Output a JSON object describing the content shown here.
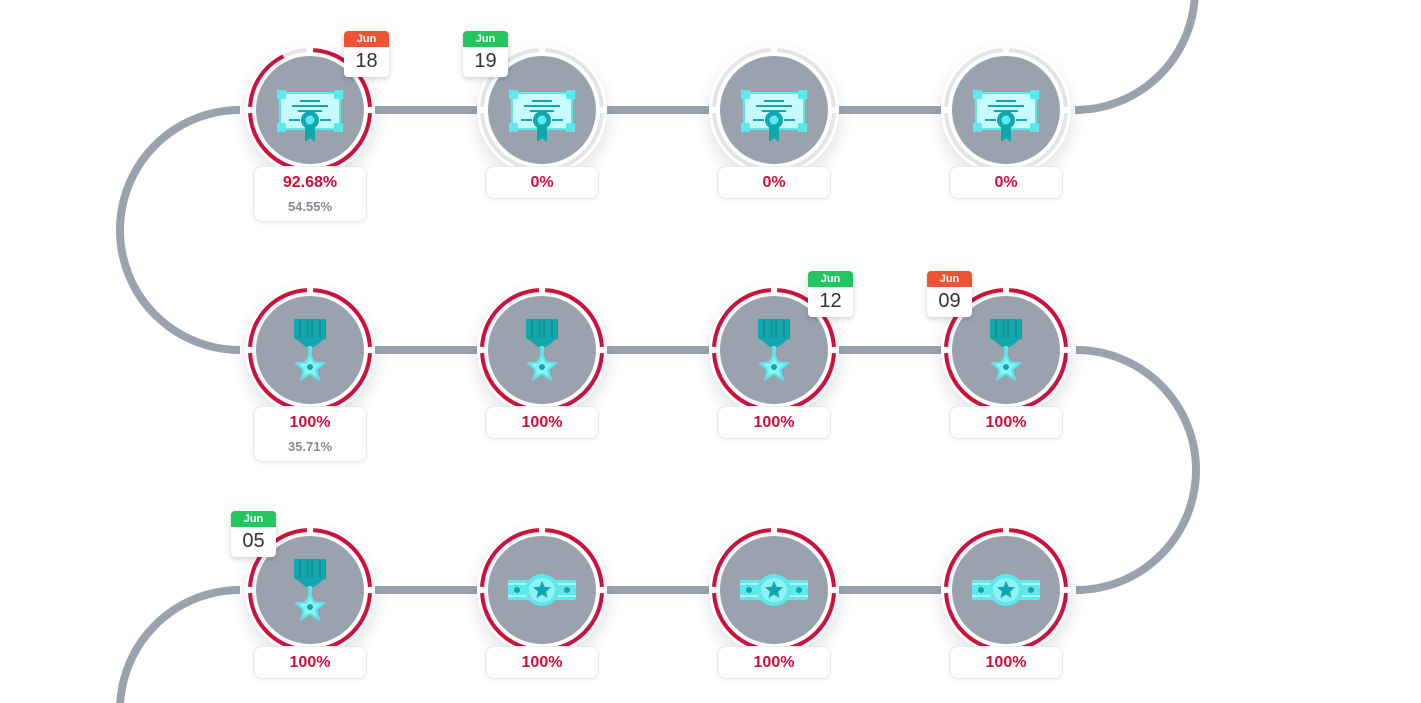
{
  "colors": {
    "track": "#9aa3ad",
    "progress": "#d0103a",
    "ring_bg": "#e3e4e6",
    "cal_red": "#ef5334",
    "cal_green": "#22c55e",
    "icon_dark": "#13a6ad",
    "icon_light": "#5de8ec",
    "icon_pale": "#c7fbfd"
  },
  "nodes": [
    {
      "icon": "certificate-icon",
      "progress": 92.68,
      "label": "92.68%",
      "sub": "54.55%",
      "calendar": {
        "month": "Jun",
        "day": "18",
        "color": "red"
      }
    },
    {
      "icon": "certificate-icon",
      "progress": 0,
      "label": "0%",
      "calendar": {
        "month": "Jun",
        "day": "19",
        "color": "green"
      }
    },
    {
      "icon": "certificate-icon",
      "progress": 0,
      "label": "0%"
    },
    {
      "icon": "certificate-icon",
      "progress": 0,
      "label": "0%"
    },
    {
      "icon": "medal-icon",
      "progress": 100,
      "label": "100%",
      "sub": "35.71%"
    },
    {
      "icon": "medal-icon",
      "progress": 100,
      "label": "100%"
    },
    {
      "icon": "medal-icon",
      "progress": 100,
      "label": "100%",
      "calendar": {
        "month": "Jun",
        "day": "12",
        "color": "green"
      }
    },
    {
      "icon": "medal-icon",
      "progress": 100,
      "label": "100%",
      "calendar": {
        "month": "Jun",
        "day": "09",
        "color": "red"
      }
    },
    {
      "icon": "medal-icon",
      "progress": 100,
      "label": "100%",
      "calendar": {
        "month": "Jun",
        "day": "05",
        "color": "green"
      }
    },
    {
      "icon": "belt-icon",
      "progress": 100,
      "label": "100%"
    },
    {
      "icon": "belt-icon",
      "progress": 100,
      "label": "100%"
    },
    {
      "icon": "belt-icon",
      "progress": 100,
      "label": "100%"
    }
  ]
}
